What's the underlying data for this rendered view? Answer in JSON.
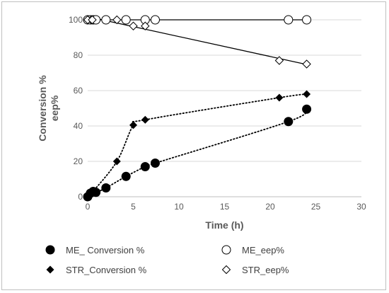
{
  "chart_data": {
    "type": "scatter",
    "title": "",
    "xlabel": "Time (h)",
    "ylabel_lines": [
      "Conversion %",
      "eep%"
    ],
    "xlim": [
      0,
      30
    ],
    "ylim": [
      0,
      100
    ],
    "x_ticks": [
      0,
      5,
      10,
      15,
      20,
      25,
      30
    ],
    "y_ticks": [
      0,
      20,
      40,
      60,
      80,
      100
    ],
    "grid": "horizontal",
    "legend_position": "bottom",
    "series": [
      {
        "name": "ME_ Conversion %",
        "marker": "filled-circle",
        "trendline": "dotted",
        "points": [
          [
            0,
            0
          ],
          [
            0.3,
            2
          ],
          [
            0.6,
            3
          ],
          [
            0.9,
            2.5
          ],
          [
            2,
            5
          ],
          [
            4.2,
            11.5
          ],
          [
            6.3,
            17
          ],
          [
            7.4,
            19
          ],
          [
            22,
            42.5
          ],
          [
            24,
            49.5
          ]
        ]
      },
      {
        "name": "ME_eep%",
        "marker": "open-circle",
        "trendline": "solid",
        "points": [
          [
            0,
            100
          ],
          [
            0.3,
            100
          ],
          [
            0.6,
            100
          ],
          [
            0.9,
            100
          ],
          [
            2,
            100
          ],
          [
            4.2,
            100
          ],
          [
            6.3,
            100
          ],
          [
            7.4,
            100
          ],
          [
            22,
            100
          ],
          [
            24,
            100
          ]
        ]
      },
      {
        "name": "STR_Conversion %",
        "marker": "filled-diamond",
        "trendline": "dotted",
        "points": [
          [
            0,
            0
          ],
          [
            0.5,
            2.5
          ],
          [
            3.2,
            20
          ],
          [
            5,
            40.5
          ],
          [
            6.3,
            43.5
          ],
          [
            21,
            56
          ],
          [
            24,
            58
          ]
        ]
      },
      {
        "name": "STR_eep%",
        "marker": "open-diamond",
        "trendline": "solid",
        "points": [
          [
            0,
            100
          ],
          [
            0.5,
            100
          ],
          [
            3.2,
            100
          ],
          [
            5,
            96.5
          ],
          [
            6.3,
            96.5
          ],
          [
            21,
            77
          ],
          [
            24,
            75
          ]
        ]
      }
    ]
  }
}
